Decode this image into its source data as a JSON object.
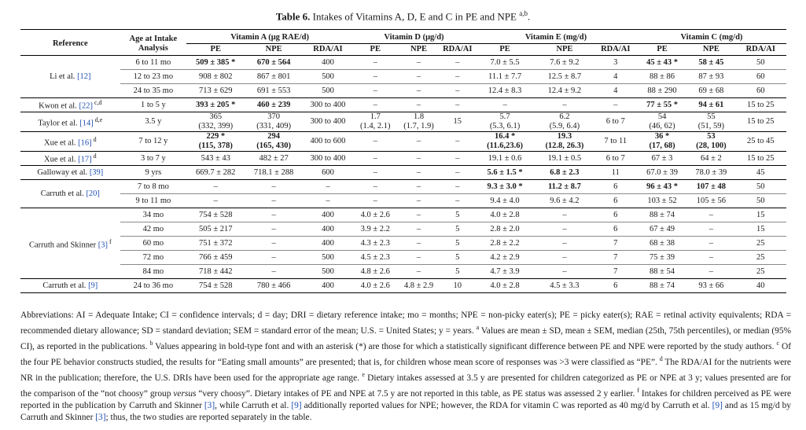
{
  "caption": {
    "label": "Table 6.",
    "text": "Intakes of Vitamins A, D, E and C in PE and NPE",
    "sup": "a,b",
    "end": "."
  },
  "header": {
    "reference": "Reference",
    "age": "Age at Intake Analysis",
    "vitA": "Vitamin A (μg RAE/d)",
    "vitD": "Vitamin D (μg/d)",
    "vitE": "Vitamin E (mg/d)",
    "vitC": "Vitamin C (mg/d)",
    "pe": "PE",
    "npe": "NPE",
    "rda": "RDA/AI"
  },
  "rows": [
    {
      "ref": "Li et al.",
      "cite": "[12]",
      "age": "6 to 11 mo",
      "aPE": "509 ± 385 *",
      "aNPE": "670 ± 564",
      "aR": "400",
      "dPE": "–",
      "dNPE": "–",
      "dR": "–",
      "ePE": "7.0 ± 5.5",
      "eNPE": "7.6 ± 9.2",
      "eR": "3",
      "cPE": "45 ± 43 *",
      "cNPE": "58 ± 45",
      "cR": "50"
    },
    {
      "age": "12 to 23 mo",
      "aPE": "908 ± 802",
      "aNPE": "867 ± 801",
      "aR": "500",
      "dPE": "–",
      "dNPE": "–",
      "dR": "–",
      "ePE": "11.1 ± 7.7",
      "eNPE": "12.5 ± 8.7",
      "eR": "4",
      "cPE": "88 ± 86",
      "cNPE": "87 ± 93",
      "cR": "60"
    },
    {
      "age": "24 to 35 mo",
      "aPE": "713 ± 629",
      "aNPE": "691 ± 553",
      "aR": "500",
      "dPE": "–",
      "dNPE": "–",
      "dR": "–",
      "ePE": "12.4 ± 8.3",
      "eNPE": "12.4 ± 9.2",
      "eR": "4",
      "cPE": "88 ± 290",
      "cNPE": "69 ± 68",
      "cR": "60"
    },
    {
      "ref": "Kwon et al.",
      "cite": "[22]",
      "sup": "c,d",
      "age": "1 to 5 y",
      "aPE": "393 ± 205 *",
      "aNPE": "460 ± 239",
      "aR": "300 to 400",
      "dPE": "–",
      "dNPE": "–",
      "dR": "–",
      "ePE": "–",
      "eNPE": "–",
      "eR": "–",
      "cPE": "77 ± 55 *",
      "cNPE": "94 ± 61",
      "cR": "15 to 25"
    },
    {
      "ref": "Taylor et al.",
      "cite": "[14]",
      "sup": "d,e",
      "age": "3.5 y",
      "aPE": "365",
      "aPE2": "(332, 399)",
      "aNPE": "370",
      "aNPE2": "(331, 409)",
      "aR": "300 to 400",
      "dPE": "1.7",
      "dPE2": "(1.4, 2.1)",
      "dNPE": "1.8",
      "dNPE2": "(1.7, 1.9)",
      "dR": "15",
      "ePE": "5.7",
      "ePE2": "(5.3, 6.1)",
      "eNPE": "6.2",
      "eNPE2": "(5.9, 6.4)",
      "eR": "6 to 7",
      "cPE": "54",
      "cPE2": "(46, 62)",
      "cNPE": "55",
      "cNPE2": "(51, 59)",
      "cR": "15 to 25"
    },
    {
      "ref": "Xue et al.",
      "cite": "[16]",
      "sup": "d",
      "age": "7 to 12 y",
      "aPE": "229 *",
      "aPE2": "(115, 378)",
      "aNPE": "294",
      "aNPE2": "(165, 430)",
      "aR": "400 to 600",
      "dPE": "–",
      "dNPE": "–",
      "dR": "–",
      "ePE": "16.4 *",
      "ePE2": "(11.6,23.6)",
      "eNPE": "19.3",
      "eNPE2": "(12.8, 26.3)",
      "eR": "7 to 11",
      "cPE": "36 *",
      "cPE2": "(17, 68)",
      "cNPE": "53",
      "cNPE2": "(28, 100)",
      "cR": "25 to 45"
    },
    {
      "ref": "Xue et al.",
      "cite": "[17]",
      "sup": "d",
      "age": "3 to 7 y",
      "aPE": "543 ± 43",
      "aNPE": "482 ± 27",
      "aR": "300 to 400",
      "dPE": "–",
      "dNPE": "–",
      "dR": "–",
      "ePE": "19.1 ± 0.6",
      "eNPE": "19.1 ± 0.5",
      "eR": "6 to 7",
      "cPE": "67 ± 3",
      "cNPE": "64 ± 2",
      "cR": "15 to 25"
    },
    {
      "ref": "Galloway et al.",
      "cite": "[39]",
      "age": "9 yrs",
      "aPE": "669.7 ± 282",
      "aNPE": "718.1 ± 288",
      "aR": "600",
      "dPE": "–",
      "dNPE": "–",
      "dR": "–",
      "ePE": "5.6 ± 1.5 *",
      "eNPE": "6.8 ± 2.3",
      "eR": "11",
      "cPE": "67.0 ± 39",
      "cNPE": "78.0 ± 39",
      "cR": "45"
    },
    {
      "ref": "Carruth et al.",
      "cite": "[20]",
      "age": "7 to 8 mo",
      "aPE": "–",
      "aNPE": "–",
      "aR": "–",
      "dPE": "–",
      "dNPE": "–",
      "dR": "–",
      "ePE": "9.3 ± 3.0 *",
      "eNPE": "11.2 ± 8.7",
      "eR": "6",
      "cPE": "96 ± 43 *",
      "cNPE": "107 ± 48",
      "cR": "50"
    },
    {
      "age": "9 to 11 mo",
      "aPE": "–",
      "aNPE": "–",
      "aR": "–",
      "dPE": "–",
      "dNPE": "–",
      "dR": "–",
      "ePE": "9.4 ± 4.0",
      "eNPE": "9.6 ± 4.2",
      "eR": "6",
      "cPE": "103 ± 52",
      "cNPE": "105 ± 56",
      "cR": "50"
    },
    {
      "ref": "Carruth and Skinner",
      "cite": "[3]",
      "sup": "f",
      "age": "34 mo",
      "aPE": "754 ± 528",
      "aNPE": "–",
      "aR": "400",
      "dPE": "4.0 ± 2.6",
      "dNPE": "–",
      "dR": "5",
      "ePE": "4.0 ± 2.8",
      "eNPE": "–",
      "eR": "6",
      "cPE": "88 ± 74",
      "cNPE": "–",
      "cR": "15"
    },
    {
      "age": "42 mo",
      "aPE": "505 ± 217",
      "aNPE": "–",
      "aR": "400",
      "dPE": "3.9 ± 2.2",
      "dNPE": "–",
      "dR": "5",
      "ePE": "2.8 ± 2.0",
      "eNPE": "–",
      "eR": "6",
      "cPE": "67 ± 49",
      "cNPE": "–",
      "cR": "15"
    },
    {
      "age": "60 mo",
      "aPE": "751 ± 372",
      "aNPE": "–",
      "aR": "400",
      "dPE": "4.3 ± 2.3",
      "dNPE": "–",
      "dR": "5",
      "ePE": "2.8 ± 2.2",
      "eNPE": "–",
      "eR": "7",
      "cPE": "68 ± 38",
      "cNPE": "–",
      "cR": "25"
    },
    {
      "age": "72 mo",
      "aPE": "766 ± 459",
      "aNPE": "–",
      "aR": "500",
      "dPE": "4.5 ± 2.3",
      "dNPE": "–",
      "dR": "5",
      "ePE": "4.2 ± 2.9",
      "eNPE": "–",
      "eR": "7",
      "cPE": "75 ± 39",
      "cNPE": "–",
      "cR": "25"
    },
    {
      "age": "84 mo",
      "aPE": "718 ± 442",
      "aNPE": "–",
      "aR": "500",
      "dPE": "4.8 ± 2.6",
      "dNPE": "–",
      "dR": "5",
      "ePE": "4.7 ± 3.9",
      "eNPE": "–",
      "eR": "7",
      "cPE": "88 ± 54",
      "cNPE": "–",
      "cR": "25"
    },
    {
      "ref": "Carruth et al.",
      "cite": "[9]",
      "age": "24 to 36 mo",
      "aPE": "754 ± 528",
      "aNPE": "780 ± 466",
      "aR": "400",
      "dPE": "4.0 ± 2.6",
      "dNPE": "4.8 ± 2.9",
      "dR": "10",
      "ePE": "4.0 ± 2.8",
      "eNPE": "4.5 ± 3.3",
      "eR": "6",
      "cPE": "88 ± 74",
      "cNPE": "93 ± 66",
      "cR": "40"
    }
  ],
  "footnotes": {
    "abbr": "Abbreviations: AI = Adequate Intake; CI = confidence intervals; d = day; DRI = dietary reference intake; mo = months; NPE = non-picky eater(s); PE = picky eater(s); RAE = retinal activity equivalents; RDA = recommended dietary allowance; SD = standard deviation; SEM = standard error of the mean; U.S. = United States; y = years.",
    "a": "Values are mean ± SD, mean ± SEM, median (25th, 75th percentiles), or median (95% CI), as reported in the publications.",
    "b": "Values appearing in bold-type font and with an asterisk (*) are those for which a statistically significant difference between PE and NPE were reported by the study authors.",
    "c": "Of the four PE behavior constructs studied, the results for “Eating small amounts” are presented; that is, for children whose mean score of responses was >3 were classified as “PE”.",
    "d": "The RDA/AI for the nutrients were NR in the publication; therefore, the U.S. DRIs have been used for the appropriate age range.",
    "e1": "Dietary intakes assessed at 3.5 y are presented for children categorized as PE or NPE at 3 y; values presented are for the comparison of the “not choosy” group",
    "versus": "versus",
    "e2": "“very choosy”. Dietary intakes of PE and NPE at 7.5 y are not reported in this table, as PE status was assessed 2 y earlier.",
    "f1": "Intakes for children perceived as PE were reported in the publication by Carruth and Skinner",
    "f1cite": "[3]",
    "f2": ", while Carruth et al.",
    "f2cite": "[9]",
    "f3": "additionally reported values for NPE; however, the RDA for vitamin C was reported as 40 mg/d by Carruth et al.",
    "f3cite": "[9]",
    "f4": "and as 15 mg/d by Carruth and Skinner",
    "f4cite": "[3]",
    "f5": "; thus, the two studies are reported separately in the table."
  }
}
